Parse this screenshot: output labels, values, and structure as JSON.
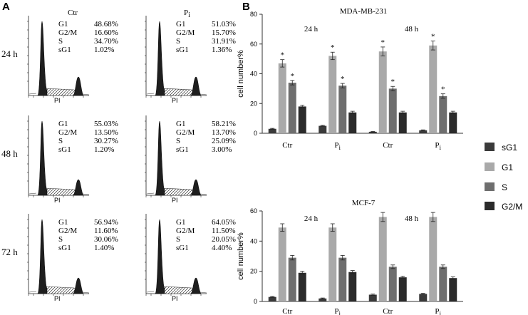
{
  "panel_a": {
    "letter": "A",
    "col_labels": [
      "Ctr",
      "P",
      "i"
    ],
    "row_labels": [
      "24 h",
      "48 h",
      "72 h"
    ],
    "phase_labels": [
      "G1",
      "G2/M",
      "S",
      "sG1"
    ],
    "stats": [
      [
        [
          "48.68%",
          "16.60%",
          "34.70%",
          "1.02%"
        ],
        [
          "51.03%",
          "15.70%",
          "31.91%",
          "1.36%"
        ]
      ],
      [
        [
          "55.03%",
          "13.50%",
          "30.27%",
          "1.20%"
        ],
        [
          "58.21%",
          "13.70%",
          "25.09%",
          "3.00%"
        ]
      ],
      [
        [
          "56.94%",
          "11.60%",
          "30.06%",
          "1.40%"
        ],
        [
          "64.05%",
          "11.50%",
          "20.05%",
          "4.40%"
        ]
      ]
    ]
  },
  "panel_b": {
    "letter": "B"
  },
  "legend": {
    "items": [
      "sG1",
      "G1",
      "S",
      "G2/M"
    ],
    "colors": [
      "#3a3a3a",
      "#a9a9a9",
      "#6e6e6e",
      "#2b2b2b"
    ]
  },
  "chart_data": [
    {
      "type": "bar",
      "title": "MDA-MB-231",
      "ylabel": "cell number%",
      "ylim": [
        0,
        80
      ],
      "yticks": [
        0,
        20,
        40,
        60,
        80
      ],
      "categories": [
        "Ctr",
        "P",
        "Ctr",
        "P"
      ],
      "category_subscripts": [
        "",
        "i",
        "",
        "i"
      ],
      "time_labels": [
        "24 h",
        "48 h"
      ],
      "series": [
        {
          "name": "sG1",
          "values": [
            3,
            5,
            1,
            2
          ],
          "errors": [
            0.3,
            0.3,
            0.2,
            0.3
          ]
        },
        {
          "name": "G1",
          "values": [
            47,
            52,
            55,
            59
          ],
          "errors": [
            2.5,
            2.5,
            3,
            3
          ]
        },
        {
          "name": "S",
          "values": [
            34,
            32,
            30,
            25
          ],
          "errors": [
            1.5,
            1.5,
            1.5,
            1.5
          ]
        },
        {
          "name": "G2/M",
          "values": [
            18,
            14,
            14,
            14
          ],
          "errors": [
            0.8,
            0.8,
            0.8,
            0.8
          ]
        }
      ],
      "significance": {
        "marker": "*",
        "series": [
          "G1",
          "S"
        ],
        "categories": [
          0,
          1,
          2,
          3
        ]
      }
    },
    {
      "type": "bar",
      "title": "MCF-7",
      "ylabel": "cell number%",
      "ylim": [
        0,
        60
      ],
      "yticks": [
        0,
        20,
        40,
        60
      ],
      "categories": [
        "Ctr",
        "P",
        "Ctr",
        "P"
      ],
      "category_subscripts": [
        "",
        "i",
        "",
        "i"
      ],
      "time_labels": [
        "24 h",
        "48 h"
      ],
      "series": [
        {
          "name": "sG1",
          "values": [
            3,
            2,
            4.5,
            5
          ],
          "errors": [
            0.3,
            0.3,
            0.4,
            0.4
          ]
        },
        {
          "name": "G1",
          "values": [
            49,
            49,
            56,
            56
          ],
          "errors": [
            2.5,
            2.5,
            3,
            3
          ]
        },
        {
          "name": "S",
          "values": [
            29,
            29,
            23,
            23
          ],
          "errors": [
            1.5,
            1.5,
            1.2,
            1.2
          ]
        },
        {
          "name": "G2/M",
          "values": [
            19,
            19.5,
            16,
            15.5
          ],
          "errors": [
            1,
            1,
            0.8,
            0.8
          ]
        }
      ]
    }
  ]
}
